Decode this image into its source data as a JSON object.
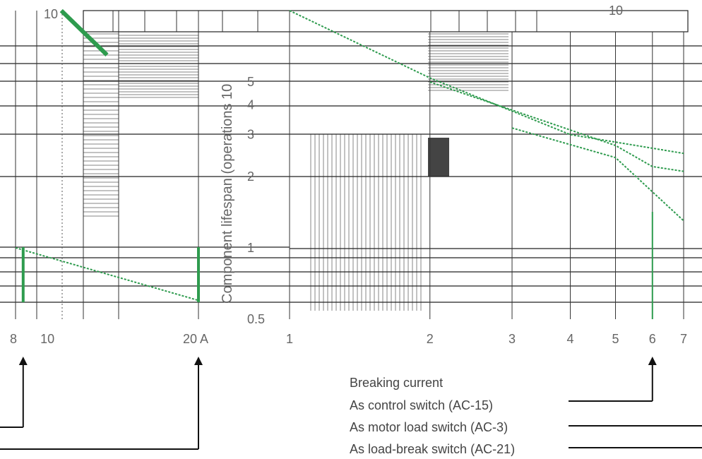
{
  "chart_data": [
    {
      "type": "line",
      "x_ticks": [
        "8",
        "10",
        "20 A"
      ],
      "x_tick_values": [
        8,
        10,
        20
      ],
      "top_tick": "10",
      "series": [
        {
          "color": "#2e9b4e",
          "x": [
            8,
            20
          ],
          "y": [
            1.0,
            0.6
          ]
        },
        {
          "color": "#2e9b4e",
          "x": [
            11,
            14
          ],
          "y": [
            10,
            6.5
          ]
        }
      ],
      "markers": [
        {
          "x": 8.5,
          "color": "#2e9b4e"
        },
        {
          "x": 20,
          "color": "#2e9b4e"
        }
      ]
    },
    {
      "type": "line",
      "ylabel": "Component lifespan (operations 10",
      "xscale": "log",
      "yscale": "log",
      "x_ticks": [
        "1",
        "2",
        "3",
        "4",
        "5",
        "6",
        "7"
      ],
      "x_tick_values": [
        1,
        2,
        3,
        4,
        5,
        6,
        7
      ],
      "y_ticks": [
        "0.5",
        "1",
        "2",
        "3",
        "4",
        "5",
        "10"
      ],
      "y_tick_values": [
        0.5,
        1,
        2,
        3,
        4,
        5,
        10
      ],
      "series": [
        {
          "color": "#2e9b4e",
          "x": [
            1,
            2,
            4,
            7
          ],
          "y": [
            10,
            5.2,
            3,
            2.5
          ]
        },
        {
          "color": "#2e9b4e",
          "x": [
            2,
            5,
            6,
            7
          ],
          "y": [
            5,
            2.7,
            2.2,
            2.1
          ]
        },
        {
          "color": "#2e9b4e",
          "x": [
            3,
            5,
            7
          ],
          "y": [
            3.2,
            2.4,
            1.3
          ]
        }
      ],
      "markers": [
        {
          "x": 6,
          "color": "#2e9b4e"
        }
      ]
    }
  ],
  "legend": {
    "title": "Breaking current",
    "items": [
      "As control switch (AC-15)",
      "As motor load switch (AC-3)",
      "As load-break switch (AC-21)"
    ]
  }
}
